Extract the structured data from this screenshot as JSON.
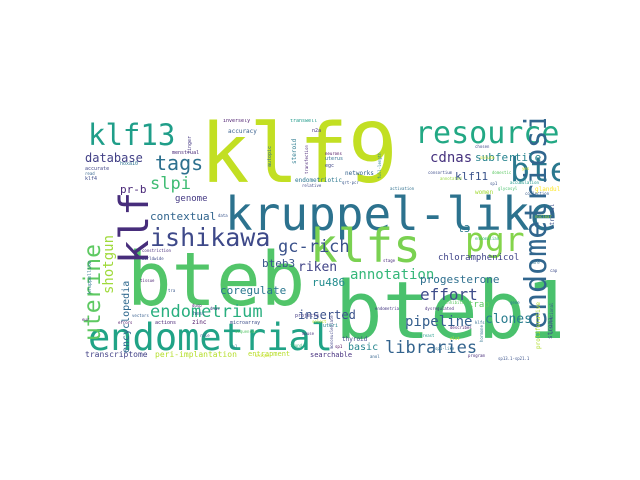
{
  "words": [
    {
      "text": "klf9",
      "color": "#c2df23"
    },
    {
      "text": "bteb1",
      "color": "#4ac16d"
    },
    {
      "text": "bteb",
      "color": "#52c569"
    },
    {
      "text": "kruppel-like",
      "color": "#2c728e"
    },
    {
      "text": "klfs",
      "color": "#7ad151"
    },
    {
      "text": "endometrial",
      "color": "#20a386"
    },
    {
      "text": "klf",
      "color": "#472d7b"
    },
    {
      "text": "resource",
      "color": "#22a884"
    },
    {
      "text": "klf13",
      "color": "#1f9e89"
    },
    {
      "text": "pgr",
      "color": "#84d44b"
    },
    {
      "text": "bte",
      "color": "#2a788e"
    },
    {
      "text": "endometriosis",
      "color": "#31668e"
    },
    {
      "text": "ishikawa",
      "color": "#3e4989"
    },
    {
      "text": "uterine",
      "color": "#5ec962"
    },
    {
      "text": "tags",
      "color": "#2d708e"
    },
    {
      "text": "libraries",
      "color": "#33638d"
    },
    {
      "text": "endometrium",
      "color": "#29af7f"
    },
    {
      "text": "slpi",
      "color": "#3fbc73"
    },
    {
      "text": "gc-rich",
      "color": "#3b528b"
    },
    {
      "text": "annotation",
      "color": "#35b779"
    },
    {
      "text": "effort",
      "color": "#3e4c8a"
    },
    {
      "text": "cdnas",
      "color": "#46327e"
    },
    {
      "text": "subfertile",
      "color": "#25838e"
    },
    {
      "text": "shotgun",
      "color": "#9fda3a"
    },
    {
      "text": "pipeline",
      "color": "#355f8d"
    },
    {
      "text": "riken",
      "color": "#414487"
    },
    {
      "text": "clones",
      "color": "#287c8e"
    },
    {
      "text": "database",
      "color": "#424086"
    },
    {
      "text": "inserted",
      "color": "#3b528b"
    },
    {
      "text": "progesterone",
      "color": "#2e6f8e"
    },
    {
      "text": "contextual",
      "color": "#32658e"
    },
    {
      "text": "coregulate",
      "color": "#2a778e"
    },
    {
      "text": "ru486",
      "color": "#228c8d"
    },
    {
      "text": "bteb3",
      "color": "#39568c"
    },
    {
      "text": "klf11",
      "color": "#3a538b"
    },
    {
      "text": "pr-b",
      "color": "#482677"
    },
    {
      "text": "genome",
      "color": "#443983"
    },
    {
      "text": "basic",
      "color": "#25858e"
    },
    {
      "text": "encyclopedia",
      "color": "#30698e"
    },
    {
      "text": "chloramphenicol",
      "color": "#404588"
    },
    {
      "text": "t3",
      "color": "#29798e"
    },
    {
      "text": "trap",
      "color": "#5ec962"
    },
    {
      "text": "transcriptome",
      "color": "#424186"
    },
    {
      "text": "peri-implantation",
      "color": "#b5de2b"
    },
    {
      "text": "entrapment",
      "color": "#b8de29"
    },
    {
      "text": "searchable",
      "color": "#46307e"
    },
    {
      "text": "endometriotic",
      "color": "#2a768e"
    },
    {
      "text": "networks",
      "color": "#33628d"
    },
    {
      "text": "accuracy",
      "color": "#355e8d"
    },
    {
      "text": "thyroid",
      "color": "#3f4889"
    },
    {
      "text": "women",
      "color": "#a2da37"
    },
    {
      "text": "zinc",
      "color": "#471063"
    },
    {
      "text": "actions",
      "color": "#482576"
    },
    {
      "text": "microarray",
      "color": "#3d4e8a"
    },
    {
      "text": "projects",
      "color": "#443b84"
    },
    {
      "text": "uteri",
      "color": "#26818e"
    },
    {
      "text": "hesc",
      "color": "#355f8d"
    },
    {
      "text": "menstrual",
      "color": "#482878"
    },
    {
      "text": "klf4",
      "color": "#3e4a89"
    },
    {
      "text": "accurate",
      "color": "#404688"
    },
    {
      "text": "hoxa10",
      "color": "#2d718e"
    },
    {
      "text": "uterus",
      "color": "#2e6d8e"
    },
    {
      "text": "egc",
      "color": "#3f4788"
    },
    {
      "text": "finger",
      "color": "#453781"
    },
    {
      "text": "inversely",
      "color": "#48186a"
    },
    {
      "text": "transwell",
      "color": "#1f9a8a"
    },
    {
      "text": "n2a",
      "color": "#46337f"
    },
    {
      "text": "autopic",
      "color": "#31688e"
    },
    {
      "text": "steroid",
      "color": "#29798e"
    },
    {
      "text": "glandular",
      "color": "#fde725"
    },
    {
      "text": "stromal",
      "color": "#3b518b"
    },
    {
      "text": "proliferative",
      "color": "#b0dd2f"
    },
    {
      "text": "stroma",
      "color": "#3e4a89"
    },
    {
      "text": "consortium",
      "color": "#3d4d8a"
    },
    {
      "text": "domestic",
      "color": "#5cc863"
    },
    {
      "text": "errors",
      "color": "#460b5e"
    },
    {
      "text": "vectors",
      "color": "#355e8d"
    },
    {
      "text": "constriction",
      "color": "#472c7a"
    },
    {
      "text": "worldwide",
      "color": "#3e4989"
    },
    {
      "text": "community",
      "color": "#3c4f8a"
    },
    {
      "text": "neurons",
      "color": "#440154"
    },
    {
      "text": "transfection",
      "color": "#482475"
    },
    {
      "text": "full-length",
      "color": "#26828e"
    },
    {
      "text": "dysregulated",
      "color": "#472e7c"
    },
    {
      "text": "chosen",
      "color": "#3f4788"
    },
    {
      "text": "collection",
      "color": "#365c8d"
    },
    {
      "text": "endometria",
      "color": "#453882"
    },
    {
      "text": "international",
      "color": "#39558c"
    },
    {
      "text": "cort",
      "color": "#2b758e"
    },
    {
      "text": "hormone",
      "color": "#2c718e"
    },
    {
      "text": "dnas",
      "color": "#453581"
    },
    {
      "text": "dusp",
      "color": "#482173"
    },
    {
      "text": "inhibitor",
      "color": "#5ec962"
    },
    {
      "text": "describes",
      "color": "#481b6d"
    },
    {
      "text": "klfs",
      "color": "#2f6b8e"
    },
    {
      "text": "qrt-pcr",
      "color": "#39568c"
    },
    {
      "text": "mononucleolate",
      "color": "#404588"
    },
    {
      "text": "kruppellike",
      "color": "#2a768e"
    },
    {
      "text": "sp1",
      "color": "#3b528b"
    },
    {
      "text": "read",
      "color": "#33638d"
    },
    {
      "text": "sequences",
      "color": "#56c667"
    },
    {
      "text": "annotated",
      "color": "#97d83f"
    },
    {
      "text": "solute",
      "color": "#d5e21a"
    },
    {
      "text": "select",
      "color": "#c0df25"
    },
    {
      "text": "tra",
      "color": "#38588c"
    },
    {
      "text": "eur",
      "color": "#481769"
    },
    {
      "text": "yes",
      "color": "#d2e21b"
    },
    {
      "text": "sp1",
      "color": "#440154"
    },
    {
      "text": "sp1",
      "color": "#26818e"
    },
    {
      "text": "accumulation",
      "color": "#1f988b"
    },
    {
      "text": "glycosyl",
      "color": "#4ac16d"
    },
    {
      "text": "elut",
      "color": "#c2df23"
    },
    {
      "text": "ensomalian",
      "color": "#35b779"
    },
    {
      "text": "sp1-like",
      "color": "#2d708e"
    },
    {
      "text": "sp13.1-sp21.1",
      "color": "#3b528b"
    },
    {
      "text": "program",
      "color": "#472c7a"
    },
    {
      "text": "relative",
      "color": "#3f4889"
    },
    {
      "text": "mouse",
      "color": "#46327e"
    },
    {
      "text": "cap",
      "color": "#3e4c8a"
    },
    {
      "text": "activation",
      "color": "#2e6f8e"
    },
    {
      "text": "nuclear",
      "color": "#a5db36"
    },
    {
      "text": "breast",
      "color": "#1f9a8a"
    },
    {
      "text": "unique",
      "color": "#c8e020"
    },
    {
      "text": "anol",
      "color": "#33638d"
    },
    {
      "text": "rare",
      "color": "#2c728e"
    },
    {
      "text": "role",
      "color": "#3b528b"
    },
    {
      "text": "data",
      "color": "#39558c"
    },
    {
      "text": "stage",
      "color": "#472c7a"
    },
    {
      "text": "tissue",
      "color": "#481f70"
    },
    {
      "text": "found",
      "color": "#35b779"
    },
    {
      "text": "gene",
      "color": "#2a788e"
    }
  ]
}
